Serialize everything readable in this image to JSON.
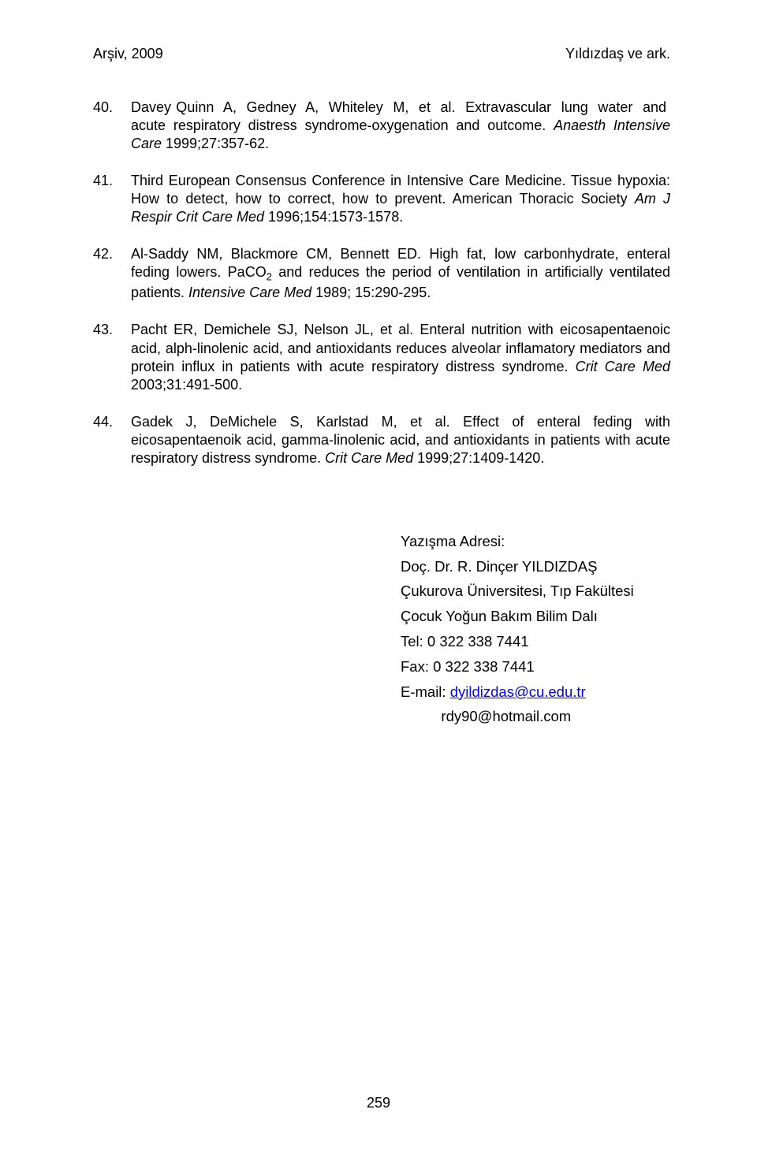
{
  "header": {
    "left": "Arşiv, 2009",
    "right": "Yıldızdaş ve ark."
  },
  "references": [
    {
      "num": "40.",
      "segments": [
        {
          "t": "Davey Quinn  A,  Gedney  A,  Whiteley  M,  et  al.  Extravascular  lung  water  and  acute respiratory distress syndrome-oxygenation and outcome. "
        },
        {
          "t": "Anaesth Intensive Care",
          "italic": true
        },
        {
          "t": " 1999;27:357-62."
        }
      ]
    },
    {
      "num": "41.",
      "segments": [
        {
          "t": "Third European Consensus Conference in Intensive Care Medicine. Tissue hypoxia: How to detect, how to correct, how to prevent. American Thoracic Society "
        },
        {
          "t": "Am J Respir Crit Care Med",
          "italic": true
        },
        {
          "t": " 1996;154:1573-1578."
        }
      ]
    },
    {
      "num": "42.",
      "segments": [
        {
          "t": "Al-Saddy NM, Blackmore CM, Bennett ED. High fat, low carbonhydrate, enteral feding lowers. PaCO"
        },
        {
          "t": "2",
          "sub": true
        },
        {
          "t": " and reduces the period of ventilation in artificially ventilated patients. "
        },
        {
          "t": "Intensive Care Med",
          "italic": true
        },
        {
          "t": " 1989; 15:290-295."
        }
      ]
    },
    {
      "num": "43.",
      "segments": [
        {
          "t": "Pacht ER, Demichele SJ, Nelson JL, et al. Enteral nutrition with eicosapentaenoic acid, alph-linolenic acid, and antioxidants reduces alveolar inflamatory mediators and protein influx in patients with acute respiratory distress syndrome. "
        },
        {
          "t": "Crit Care Med",
          "italic": true
        },
        {
          "t": " 2003;31:491-500."
        }
      ]
    },
    {
      "num": "44.",
      "segments": [
        {
          "t": "Gadek J, DeMichele S, Karlstad M, et al. Effect of enteral feding with eicosapentaenoik acid, gamma-linolenic acid, and antioxidants in patients with acute respiratory distress syndrome. "
        },
        {
          "t": "Crit Care Med",
          "italic": true
        },
        {
          "t": " 1999;27:1409-1420."
        }
      ]
    }
  ],
  "address": {
    "title": "Yazışma Adresi:",
    "lines": [
      "Doç. Dr. R. Dinçer YILDIZDAŞ",
      "Çukurova Üniversitesi, Tıp Fakültesi",
      "Çocuk Yoğun Bakım Bilim Dalı",
      "Tel: 0 322 338 7441",
      " Fax: 0 322 338 7441"
    ],
    "email_label": " E-mail: ",
    "email_link": "dyildizdas@cu.edu.tr",
    "email2_indent": "          ",
    "email2": "rdy90@hotmail.com"
  },
  "page_number": "259"
}
